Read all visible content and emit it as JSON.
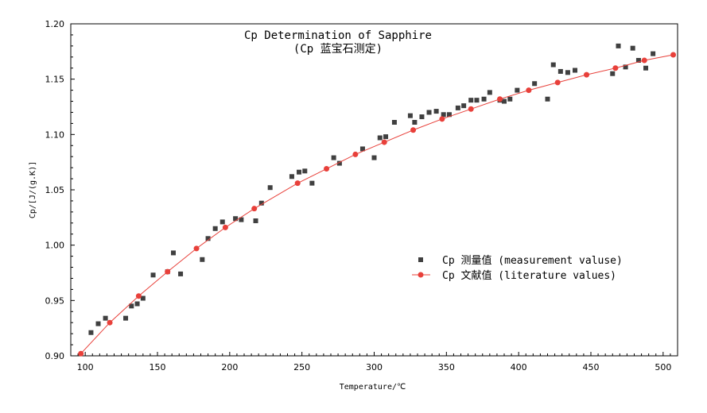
{
  "chart_data": {
    "type": "scatter",
    "title": "Cp Determination of Sapphire",
    "subtitle": "(Cp 蓝宝石测定)",
    "xlabel": "Temperature/℃",
    "ylabel": "Cp/[J/(g.K)]",
    "xlim": [
      90,
      510
    ],
    "ylim": [
      0.9,
      1.2
    ],
    "xticks": [
      100,
      150,
      200,
      250,
      300,
      350,
      400,
      450,
      500
    ],
    "yticks": [
      0.9,
      0.95,
      1.0,
      1.05,
      1.1,
      1.15,
      1.2
    ],
    "ytick_labels": [
      "0.90",
      "0.95",
      "1.00",
      "1.05",
      "1.10",
      "1.15",
      "1.20"
    ],
    "legend_position": "center-right",
    "grid": false,
    "series": [
      {
        "name": "Cp 测量值 (measurement valuse)",
        "marker": "square",
        "color": "#404040",
        "line": false,
        "x": [
          104,
          109,
          114,
          128,
          132,
          136,
          140,
          147,
          157,
          161,
          166,
          181,
          185,
          190,
          195,
          204,
          208,
          218,
          222,
          228,
          243,
          248,
          252,
          257,
          272,
          276,
          292,
          300,
          304,
          308,
          314,
          325,
          328,
          333,
          338,
          343,
          348,
          352,
          358,
          362,
          367,
          371,
          376,
          380,
          387,
          390,
          394,
          399,
          411,
          420,
          424,
          429,
          434,
          439,
          465,
          469,
          474,
          479,
          483,
          488,
          493
        ],
        "y": [
          0.921,
          0.929,
          0.934,
          0.934,
          0.945,
          0.947,
          0.952,
          0.973,
          0.976,
          0.993,
          0.974,
          0.987,
          1.006,
          1.015,
          1.021,
          1.024,
          1.023,
          1.022,
          1.038,
          1.052,
          1.062,
          1.066,
          1.067,
          1.056,
          1.079,
          1.074,
          1.087,
          1.079,
          1.097,
          1.098,
          1.111,
          1.117,
          1.111,
          1.116,
          1.12,
          1.121,
          1.118,
          1.118,
          1.124,
          1.126,
          1.131,
          1.131,
          1.132,
          1.138,
          1.131,
          1.13,
          1.132,
          1.14,
          1.146,
          1.132,
          1.163,
          1.157,
          1.156,
          1.158,
          1.155,
          1.18,
          1.161,
          1.178,
          1.167,
          1.16,
          1.173
        ]
      },
      {
        "name": "Cp 文献值 (literature values)",
        "marker": "circle",
        "color": "#e8403a",
        "line": true,
        "x": [
          97,
          117,
          137,
          157,
          177,
          197,
          217,
          247,
          267,
          287,
          307,
          327,
          347,
          367,
          387,
          407,
          427,
          447,
          467,
          487,
          507
        ],
        "y": [
          0.902,
          0.93,
          0.954,
          0.976,
          0.997,
          1.016,
          1.033,
          1.056,
          1.069,
          1.082,
          1.093,
          1.104,
          1.114,
          1.123,
          1.132,
          1.14,
          1.147,
          1.154,
          1.16,
          1.167,
          1.172
        ]
      }
    ]
  }
}
